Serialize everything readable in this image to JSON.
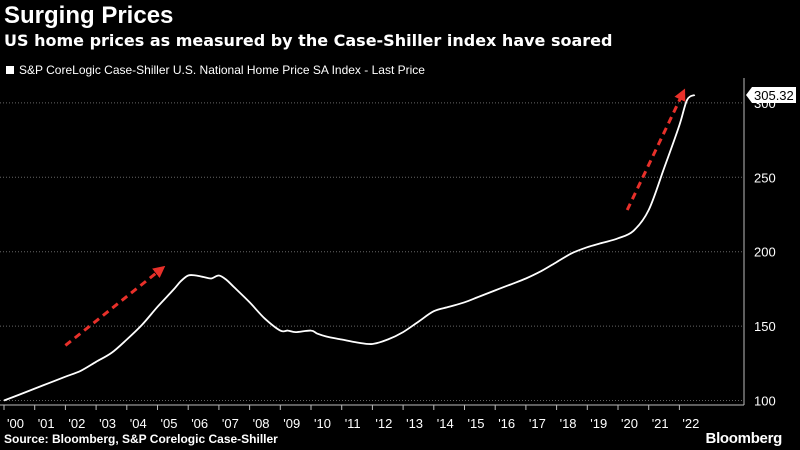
{
  "header": {
    "title": "Surging Prices",
    "subtitle": "US home prices as measured by the Case-Shiller index have soared"
  },
  "footer": {
    "source": "Source: Bloomberg, S&P Corelogic Case-Shiller",
    "logo": "Bloomberg"
  },
  "colors": {
    "background": "#000000",
    "line": "#ffffff",
    "grid": "#666666",
    "arrow": "#e8302a"
  },
  "chart_data": {
    "type": "line",
    "title": "Surging Prices",
    "subtitle": "US home prices as measured by the Case-Shiller index have soared",
    "xlabel": "",
    "ylabel": "",
    "legend_position": "top-left",
    "grid": true,
    "ylim": [
      97,
      310
    ],
    "yticks": [
      100,
      150,
      200,
      250,
      300
    ],
    "xticks": [
      "'00",
      "'01",
      "'02",
      "'03",
      "'04",
      "'05",
      "'06",
      "'07",
      "'08",
      "'09",
      "'10",
      "'11",
      "'12",
      "'13",
      "'14",
      "'15",
      "'16",
      "'17",
      "'18",
      "'19",
      "'20",
      "'21",
      "'22"
    ],
    "last_value_label": "305.32",
    "series": [
      {
        "name": "S&P CoreLogic Case-Shiller U.S. National Home Price SA Index - Last Price",
        "x": [
          2000.0,
          2000.5,
          2001.0,
          2001.5,
          2002.0,
          2002.5,
          2003.0,
          2003.5,
          2004.0,
          2004.5,
          2005.0,
          2005.5,
          2005.75,
          2006.0,
          2006.25,
          2006.5,
          2006.75,
          2007.0,
          2007.25,
          2007.5,
          2008.0,
          2008.5,
          2009.0,
          2009.25,
          2009.5,
          2010.0,
          2010.2,
          2010.5,
          2011.0,
          2011.5,
          2012.0,
          2012.5,
          2013.0,
          2013.5,
          2014.0,
          2014.5,
          2015.0,
          2015.5,
          2016.0,
          2016.5,
          2017.0,
          2017.5,
          2018.0,
          2018.5,
          2019.0,
          2019.5,
          2020.0,
          2020.5,
          2021.0,
          2021.5,
          2022.0,
          2022.25,
          2022.5
        ],
        "y": [
          100,
          104,
          108,
          112,
          116,
          120,
          126,
          132,
          141,
          151,
          163,
          174,
          180,
          184,
          184,
          183,
          182,
          184,
          181,
          176,
          166,
          155,
          147,
          147,
          146,
          147,
          145,
          143,
          141,
          139,
          138,
          141,
          146,
          153,
          160,
          163,
          166,
          170,
          174,
          178,
          182,
          187,
          193,
          199,
          203,
          206,
          209,
          214,
          228,
          256,
          285,
          302,
          305.32
        ]
      }
    ],
    "annotations": [
      {
        "type": "arrow",
        "from": [
          2002.0,
          137
        ],
        "to": [
          2005.1,
          188
        ]
      },
      {
        "type": "arrow",
        "from": [
          2020.3,
          228
        ],
        "to": [
          2022.1,
          306
        ]
      }
    ]
  }
}
